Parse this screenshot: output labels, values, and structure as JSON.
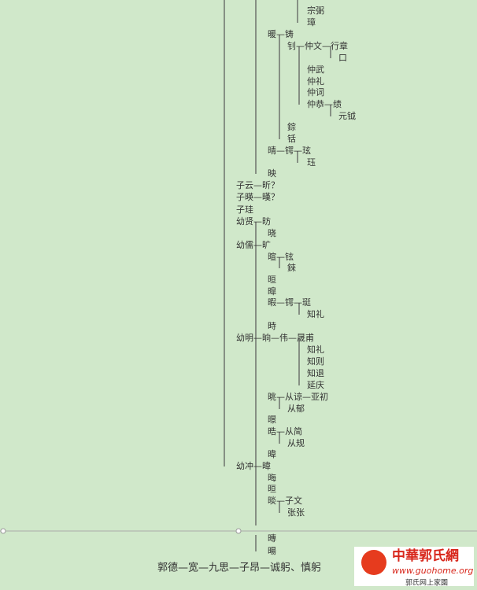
{
  "tree": {
    "lines": [
      "宗弼",
      "璋",
      "暖—铸",
      "钊—仲文—行章",
      "口",
      "仲武",
      "仲礼",
      "仲词",
      "仲恭—绩",
      "元钺",
      "錝",
      "铦",
      "晴—锷—玹",
      "珏",
      "映",
      "子云—昕？",
      "子暎—暵？",
      "子珪",
      "幼贤—昉",
      "晓",
      "幼儒—旷",
      "暄—铉",
      "錸",
      "晅",
      "暭",
      "暇—锷—珽",
      "知礼",
      "時",
      "幼明—晌—伟—晟甫",
      "知礼",
      "知则",
      "知退",
      "延庆",
      "晀—从谅—亚初",
      "从郁",
      "暻",
      "晧—从简",
      "从规",
      "暐",
      "幼冲—暐",
      "晦",
      "晅",
      "晱—子文",
      "张张",
      "暷",
      "暘"
    ],
    "footer": "郭德—宽—九思—子昂—诚躬、慎躬"
  },
  "logo": {
    "name": "中華郭氏網",
    "url": "www.guohome.org",
    "tagline": "郭氏网上家園"
  }
}
